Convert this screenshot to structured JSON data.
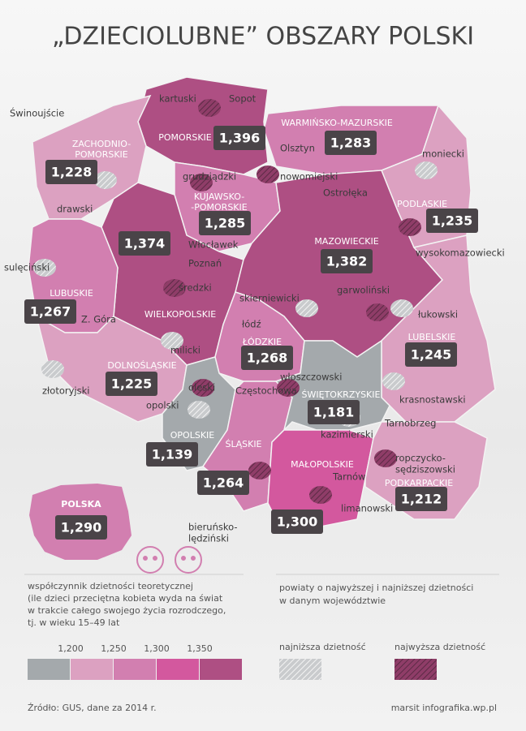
{
  "title": "„DZIECIOLUBNE” OBSZARY POLSKI",
  "regions": [
    {
      "name": [
        "POMORSKIE"
      ],
      "value": "1,396",
      "color": "#ae4f83"
    },
    {
      "name": [
        "ZACHODNIO-",
        "POMORSKIE"
      ],
      "value": "1,228",
      "color": "#dca1c1"
    },
    {
      "name": [
        "WARMIŃSKO-MAZURSKIE"
      ],
      "value": "1,283",
      "color": "#d27fb0"
    },
    {
      "name": [
        "PODLASKIE"
      ],
      "value": "1,235",
      "color": "#dca1c1"
    },
    {
      "name": [
        "KUJAWSKO-",
        "-POMORSKIE"
      ],
      "value": "1,285",
      "color": "#d27fb0"
    },
    {
      "name": [
        "WIELKOPOLSKIE"
      ],
      "value": "1,374",
      "color": "#ae4f83"
    },
    {
      "name": [
        "LUBUSKIE"
      ],
      "value": "1,267",
      "color": "#d27fb0"
    },
    {
      "name": [
        "MAZOWIECKIE"
      ],
      "value": "1,382",
      "color": "#ae4f83"
    },
    {
      "name": [
        "ŁÓDZKIE"
      ],
      "value": "1,268",
      "color": "#d27fb0"
    },
    {
      "name": [
        "LUBELSKIE"
      ],
      "value": "1,245",
      "color": "#dca1c1"
    },
    {
      "name": [
        "DOLNOŚLĄSKIE"
      ],
      "value": "1,225",
      "color": "#dca1c1"
    },
    {
      "name": [
        "OPOLSKIE"
      ],
      "value": "1,139",
      "color": "#a4a9ac"
    },
    {
      "name": [
        "ŚLĄSKIE"
      ],
      "value": "1,264",
      "color": "#d27fb0"
    },
    {
      "name": [
        "ŚWIĘTOKRZYSKIE"
      ],
      "value": "1,181",
      "color": "#a4a9ac"
    },
    {
      "name": [
        "MAŁOPOLSKIE"
      ],
      "value": "1,300",
      "color": "#d3589e"
    },
    {
      "name": [
        "PODKARPACKIE"
      ],
      "value": "1,212",
      "color": "#dca1c1"
    }
  ],
  "country": {
    "name": "POLSKA",
    "value": "1,290",
    "color": "#d27fb0"
  },
  "powiats": [
    {
      "label": [
        "kartuski"
      ],
      "kind": "high"
    },
    {
      "label": [
        "drawski"
      ],
      "kind": "low"
    },
    {
      "label": [
        "sulęciński"
      ],
      "kind": "low"
    },
    {
      "label": [
        "grudziądzki"
      ],
      "kind": "high"
    },
    {
      "label": [
        "nowomiejski"
      ],
      "kind": "high"
    },
    {
      "label": [
        "moniecki"
      ],
      "kind": "low"
    },
    {
      "label": [
        "wysokomazowiecki"
      ],
      "kind": "high"
    },
    {
      "label": [
        "skierniewicki"
      ],
      "kind": "low"
    },
    {
      "label": [
        "garwoliński"
      ],
      "kind": "high"
    },
    {
      "label": [
        "łukowski"
      ],
      "kind": "low"
    },
    {
      "label": [
        "średzki"
      ],
      "kind": "high"
    },
    {
      "label": [
        "milicki"
      ],
      "kind": "low"
    },
    {
      "label": [
        "złotoryjski"
      ],
      "kind": "low"
    },
    {
      "label": [
        "oleski"
      ],
      "kind": "high"
    },
    {
      "label": [
        "opolski"
      ],
      "kind": "low"
    },
    {
      "label": [
        "włoszczowski"
      ],
      "kind": "high"
    },
    {
      "label": [
        "kazimierski"
      ],
      "kind": "low"
    },
    {
      "label": [
        "krasnostawski"
      ],
      "kind": "low"
    },
    {
      "label": [
        "ropczycko-",
        "sędziszowski"
      ],
      "kind": "high"
    },
    {
      "label": [
        "bieruńsko-",
        "lędziński"
      ],
      "kind": "high"
    },
    {
      "label": [
        "limanowski"
      ],
      "kind": "high"
    }
  ],
  "places": [
    "Świnoujście",
    "Sopot",
    "Olsztyn",
    "Ostrołęka",
    "Włocławek",
    "Poznań",
    "łódź",
    "Częstochowa",
    "Tarnobrzeg",
    "Tarnów",
    "Z. Góra"
  ],
  "legend": {
    "scale_title": [
      "współczynnik dzietności teoretycznej",
      "(ile dzieci przeciętna kobieta wyda na świat",
      "w trakcie całego swojego życia rozrodczego,",
      "tj. w wieku 15–49 lat"
    ],
    "thresholds": [
      "1,200",
      "1,250",
      "1,300",
      "1,350"
    ],
    "colors": [
      "#a4a9ac",
      "#dca1c1",
      "#d27fb0",
      "#d3589e",
      "#ae4f83"
    ],
    "hatch_title": [
      "powiaty o najwyższej i najniższej dzietności",
      "w danym województwie"
    ],
    "low": "najniższa dzietność",
    "high": "najwyższa dzietność"
  },
  "source": "Źródło: GUS, dane za 2014 r.",
  "credit": "marsit infografika.wp.pl"
}
